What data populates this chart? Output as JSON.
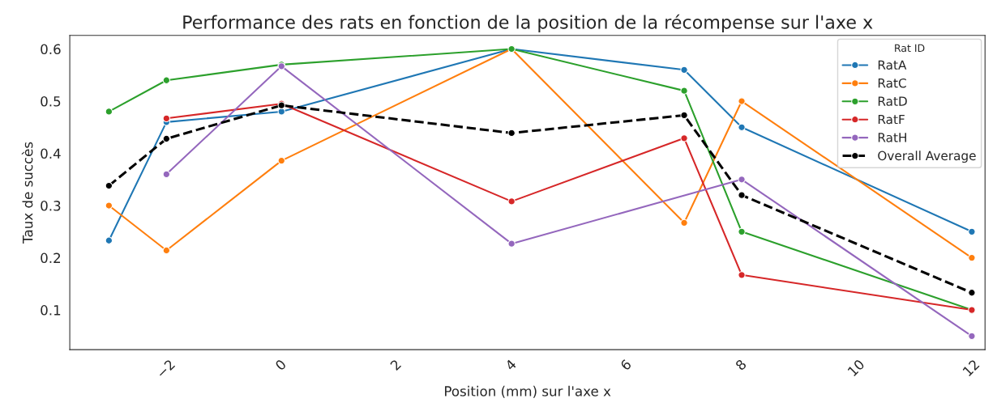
{
  "chart_data": {
    "type": "line",
    "title": "Performance des rats en fonction de la position de la récompense sur l'axe x",
    "xlabel": "Position (mm) sur l'axe x",
    "ylabel": "Taux de succès",
    "legend_title": "Rat ID",
    "legend": "top right",
    "marker": "circle",
    "grid": false,
    "xlim": [
      -3.68,
      12.23
    ],
    "xticks": [
      {
        "value": -2,
        "label": "−2"
      },
      0,
      2,
      4,
      6,
      8,
      10,
      12
    ],
    "ylim": [
      0.024,
      0.626
    ],
    "yticks": [
      0.1,
      0.2,
      0.3,
      0.4,
      0.5,
      0.6
    ],
    "series": [
      {
        "name": "RatA",
        "color": "#1f77b4",
        "x": [
          -3,
          -2,
          0,
          4,
          7,
          8,
          12
        ],
        "values": [
          0.233,
          0.46,
          0.48,
          0.6,
          0.56,
          0.45,
          0.25
        ]
      },
      {
        "name": "RatC",
        "color": "#ff7f0e",
        "x": [
          -3,
          -2,
          0,
          4,
          7,
          8,
          12
        ],
        "values": [
          0.3,
          0.214,
          0.386,
          0.6,
          0.267,
          0.5,
          0.2
        ]
      },
      {
        "name": "RatD",
        "color": "#2ca02c",
        "x": [
          -3,
          -2,
          0,
          4,
          7,
          8,
          12
        ],
        "values": [
          0.48,
          0.54,
          0.57,
          0.6,
          0.52,
          0.25,
          0.1
        ]
      },
      {
        "name": "RatF",
        "color": "#d62728",
        "x": [
          -2,
          0,
          4,
          7,
          8,
          12
        ],
        "values": [
          0.467,
          0.495,
          0.308,
          0.429,
          0.167,
          0.1
        ]
      },
      {
        "name": "RatH",
        "color": "#9467bd",
        "x": [
          -2,
          0,
          4,
          8,
          12
        ],
        "values": [
          0.36,
          0.567,
          0.227,
          0.35,
          0.05
        ]
      },
      {
        "name": "Overall Average",
        "color": "#000000",
        "line_style": "dashed",
        "x": [
          -3,
          -2,
          0,
          4,
          7,
          8,
          12
        ],
        "values": [
          0.338,
          0.428,
          0.492,
          0.439,
          0.473,
          0.32,
          0.133
        ]
      }
    ]
  }
}
